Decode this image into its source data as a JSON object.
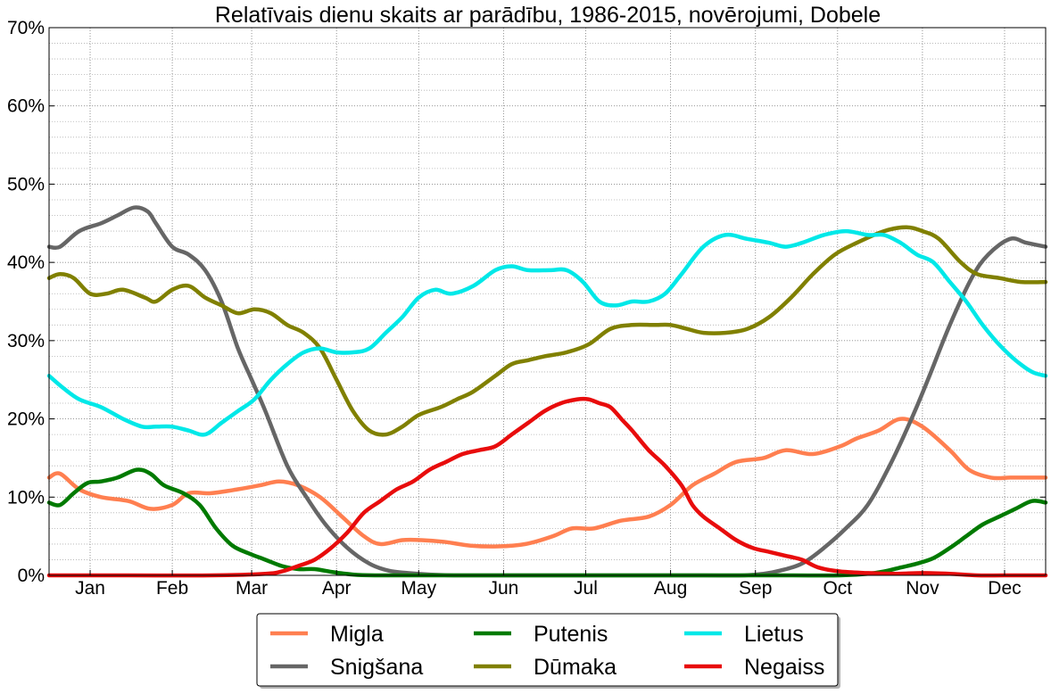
{
  "chart_data": {
    "type": "line",
    "title": "Relatīvais dienu skaits ar parādību, 1986-2015, novērojumi, Dobele",
    "xlabel": "",
    "ylabel": "",
    "x_unit": "day of year",
    "xlim": [
      1,
      365
    ],
    "ylim": [
      0,
      70
    ],
    "y_ticks": [
      0,
      10,
      20,
      30,
      40,
      50,
      60,
      70
    ],
    "y_tick_labels": [
      "0%",
      "10%",
      "20%",
      "30%",
      "40%",
      "50%",
      "60%",
      "70%"
    ],
    "month_labels": [
      "Jan",
      "Feb",
      "Mar",
      "Apr",
      "May",
      "Jun",
      "Jul",
      "Aug",
      "Sep",
      "Oct",
      "Nov",
      "Dec"
    ],
    "month_label_days": [
      16,
      46,
      75,
      106,
      136,
      167,
      197,
      228,
      259,
      289,
      320,
      350
    ],
    "grid": true,
    "legend_position": "bottom-center",
    "series": [
      {
        "name": "Migla",
        "color": "#ff7f50",
        "x": [
          1,
          5,
          12,
          20,
          30,
          38,
          46,
          52,
          60,
          70,
          78,
          85,
          92,
          100,
          108,
          116,
          122,
          130,
          137,
          145,
          155,
          165,
          175,
          185,
          192,
          200,
          210,
          220,
          228,
          236,
          244,
          252,
          262,
          270,
          280,
          290,
          296,
          304,
          312,
          320,
          330,
          337,
          345,
          352,
          358,
          365
        ],
        "values": [
          12.5,
          13,
          11,
          10,
          9.5,
          8.5,
          9,
          10.5,
          10.5,
          11,
          11.5,
          12,
          11.5,
          10,
          7.5,
          5,
          4,
          4.5,
          4.5,
          4.3,
          3.8,
          3.7,
          4,
          5,
          6,
          6,
          7,
          7.5,
          9,
          11.5,
          13,
          14.5,
          15,
          16,
          15.5,
          16.5,
          17.5,
          18.5,
          20,
          19,
          16,
          13.5,
          12.5,
          12.5,
          12.5,
          12.5
        ]
      },
      {
        "name": "Snigšana",
        "color": "#666666",
        "x": [
          1,
          5,
          12,
          20,
          26,
          32,
          37,
          40,
          46,
          52,
          58,
          64,
          70,
          75,
          80,
          88,
          95,
          102,
          110,
          118,
          125,
          132,
          140,
          150,
          160,
          170,
          180,
          200,
          220,
          240,
          255,
          262,
          268,
          276,
          284,
          292,
          300,
          308,
          316,
          322,
          330,
          338,
          344,
          352,
          358,
          365
        ],
        "values": [
          42,
          42,
          44,
          45,
          46,
          47,
          46.5,
          45,
          42,
          41,
          39,
          35,
          29,
          25,
          21,
          14,
          10,
          6.5,
          3.5,
          1.5,
          0.6,
          0.3,
          0.1,
          0,
          0,
          0,
          0,
          0,
          0,
          0,
          0,
          0.2,
          0.6,
          1.5,
          3.5,
          6,
          9,
          14,
          20,
          25,
          32,
          38,
          41,
          43,
          42.5,
          42
        ]
      },
      {
        "name": "Putenis",
        "color": "#007a00",
        "x": [
          1,
          5,
          10,
          15,
          20,
          26,
          33,
          38,
          43,
          50,
          56,
          62,
          68,
          74,
          80,
          86,
          92,
          98,
          105,
          112,
          120,
          130,
          140,
          160,
          200,
          240,
          270,
          290,
          300,
          306,
          312,
          318,
          324,
          330,
          336,
          342,
          348,
          354,
          360,
          365
        ],
        "values": [
          9.3,
          9,
          10.5,
          11.8,
          12,
          12.5,
          13.5,
          13,
          11.5,
          10.5,
          9,
          6,
          3.8,
          2.8,
          2,
          1.2,
          0.8,
          0.8,
          0.4,
          0.1,
          0,
          0,
          0,
          0,
          0,
          0,
          0,
          0,
          0.2,
          0.5,
          1,
          1.5,
          2.2,
          3.5,
          5,
          6.5,
          7.5,
          8.5,
          9.5,
          9.3
        ]
      },
      {
        "name": "Dūmaka",
        "color": "#808000",
        "x": [
          1,
          5,
          10,
          16,
          22,
          28,
          36,
          40,
          46,
          52,
          58,
          64,
          70,
          76,
          82,
          88,
          94,
          100,
          106,
          112,
          118,
          124,
          130,
          136,
          144,
          150,
          156,
          164,
          170,
          176,
          182,
          190,
          198,
          206,
          214,
          222,
          228,
          234,
          240,
          248,
          256,
          264,
          272,
          280,
          288,
          296,
          306,
          314,
          320,
          326,
          334,
          340,
          348,
          356,
          365
        ],
        "values": [
          38,
          38.5,
          38,
          36,
          36,
          36.5,
          35.5,
          35,
          36.5,
          37,
          35.5,
          34.5,
          33.5,
          34,
          33.5,
          32,
          31,
          29,
          25,
          21,
          18.5,
          18,
          19,
          20.5,
          21.5,
          22.5,
          23.5,
          25.5,
          27,
          27.5,
          28,
          28.5,
          29.5,
          31.5,
          32,
          32,
          32,
          31.5,
          31,
          31,
          31.5,
          33,
          35.5,
          38.5,
          41,
          42.5,
          44,
          44.5,
          44,
          43,
          40,
          38.5,
          38,
          37.5,
          37.5
        ]
      },
      {
        "name": "Lietus",
        "color": "#00e8e8",
        "x": [
          1,
          6,
          12,
          20,
          28,
          35,
          40,
          46,
          52,
          58,
          64,
          70,
          76,
          82,
          88,
          94,
          100,
          106,
          112,
          118,
          124,
          130,
          136,
          142,
          148,
          156,
          164,
          170,
          176,
          184,
          190,
          196,
          202,
          208,
          214,
          220,
          226,
          232,
          240,
          248,
          256,
          264,
          270,
          276,
          284,
          292,
          300,
          306,
          312,
          318,
          324,
          330,
          336,
          342,
          348,
          354,
          360,
          365
        ],
        "values": [
          25.5,
          24,
          22.5,
          21.5,
          20,
          19,
          19,
          19,
          18.5,
          18,
          19.5,
          21,
          22.5,
          25,
          27,
          28.5,
          29,
          28.5,
          28.5,
          29,
          31,
          33,
          35.5,
          36.5,
          36,
          37,
          39,
          39.5,
          39,
          39,
          39,
          37.5,
          35,
          34.5,
          35,
          35,
          36,
          38.5,
          42,
          43.5,
          43,
          42.5,
          42,
          42.5,
          43.5,
          44,
          43.5,
          43.5,
          42.5,
          41,
          40,
          37.5,
          35,
          32,
          29.5,
          27.5,
          26,
          25.5
        ]
      },
      {
        "name": "Negaiss",
        "color": "#e80c0c",
        "x": [
          1,
          30,
          60,
          80,
          86,
          92,
          98,
          104,
          110,
          116,
          122,
          128,
          134,
          140,
          146,
          152,
          158,
          164,
          170,
          176,
          182,
          188,
          194,
          198,
          202,
          206,
          210,
          214,
          220,
          226,
          232,
          236,
          240,
          246,
          252,
          258,
          264,
          270,
          276,
          282,
          290,
          300,
          310,
          320,
          330,
          340,
          350,
          365
        ],
        "values": [
          0,
          0,
          0,
          0.2,
          0.5,
          1.2,
          2,
          3.5,
          5.5,
          8,
          9.5,
          11,
          12,
          13.5,
          14.5,
          15.5,
          16,
          16.5,
          18,
          19.5,
          21,
          22,
          22.5,
          22.5,
          22,
          21.5,
          20,
          18.5,
          16,
          14,
          11.5,
          9,
          7.5,
          6,
          4.5,
          3.5,
          3,
          2.5,
          2,
          1,
          0.5,
          0.3,
          0.2,
          0.3,
          0.2,
          0,
          0,
          0
        ]
      }
    ]
  }
}
